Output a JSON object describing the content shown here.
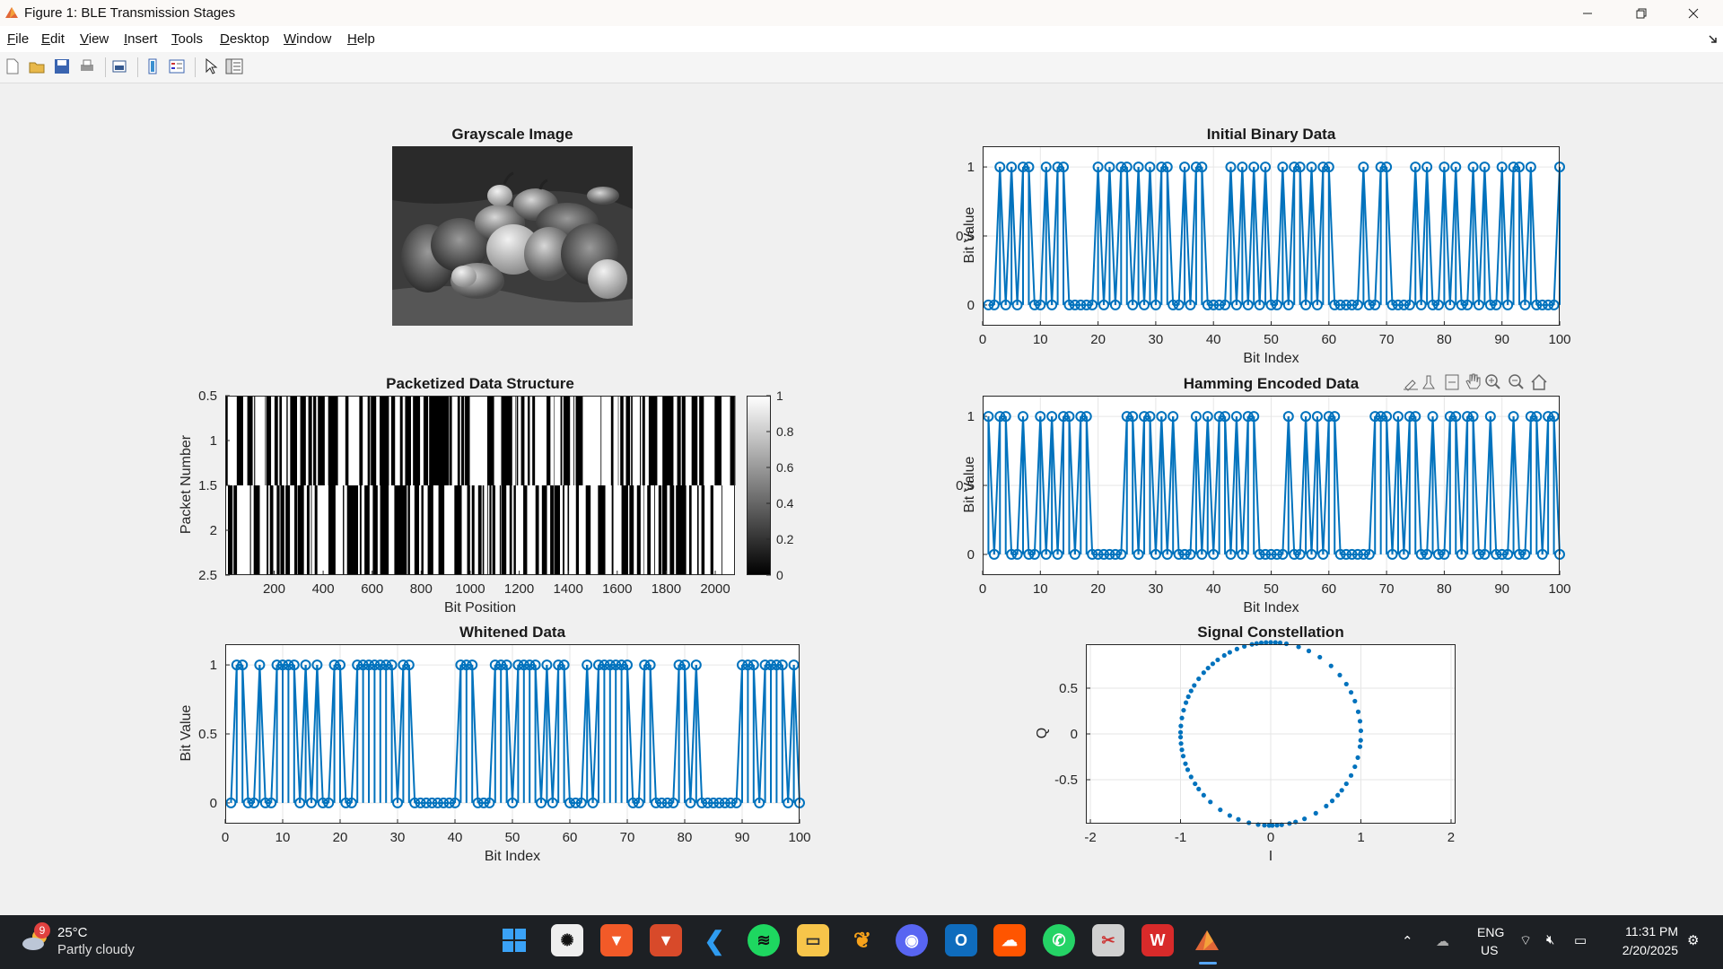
{
  "window": {
    "title": "Figure 1: BLE Transmission Stages"
  },
  "menu": {
    "items": [
      {
        "key": "F",
        "rest": "ile"
      },
      {
        "key": "E",
        "rest": "dit"
      },
      {
        "key": "V",
        "rest": "iew"
      },
      {
        "key": "I",
        "rest": "nsert"
      },
      {
        "key": "T",
        "rest": "ools"
      },
      {
        "key": "D",
        "rest": "esktop"
      },
      {
        "key": "W",
        "rest": "indow"
      },
      {
        "key": "H",
        "rest": "elp"
      }
    ]
  },
  "toolbar": {
    "icons": [
      "new-figure-icon",
      "open-file-icon",
      "save-icon",
      "print-icon",
      "print-preview-icon",
      "colorbar-icon",
      "legend-icon",
      "edit-plot-icon",
      "property-inspector-icon"
    ]
  },
  "axes_toolbar": {
    "icons": [
      "brush-icon",
      "data-tips-icon",
      "rotate-icon",
      "pan-icon",
      "zoom-in-icon",
      "zoom-out-icon",
      "home-icon"
    ]
  },
  "chart_data": [
    {
      "type": "image",
      "title": "Grayscale Image"
    },
    {
      "type": "stem",
      "title": "Initial Binary Data",
      "xlabel": "Bit Index",
      "ylabel": "Bit Value",
      "xlim": [
        0,
        100
      ],
      "ylim": [
        -0.15,
        1.15
      ],
      "xticks": [
        "0",
        "10",
        "20",
        "30",
        "40",
        "50",
        "60",
        "70",
        "80",
        "90",
        "100"
      ],
      "yticks": [
        "0",
        "0.5",
        "1"
      ],
      "grid": true,
      "x": [
        1,
        2,
        3,
        4,
        5,
        6,
        7,
        8,
        9,
        10,
        11,
        12,
        13,
        14,
        15,
        16,
        17,
        18,
        19,
        20,
        21,
        22,
        23,
        24,
        25,
        26,
        27,
        28,
        29,
        30,
        31,
        32,
        33,
        34,
        35,
        36,
        37,
        38,
        39,
        40,
        41,
        42,
        43,
        44,
        45,
        46,
        47,
        48,
        49,
        50,
        51,
        52,
        53,
        54,
        55,
        56,
        57,
        58,
        59,
        60,
        61,
        62,
        63,
        64,
        65,
        66,
        67,
        68,
        69,
        70,
        71,
        72,
        73,
        74,
        75,
        76,
        77,
        78,
        79,
        80,
        81,
        82,
        83,
        84,
        85,
        86,
        87,
        88,
        89,
        90,
        91,
        92,
        93,
        94,
        95,
        96,
        97,
        98,
        99,
        100
      ],
      "y": [
        0,
        0,
        1,
        0,
        1,
        0,
        1,
        1,
        0,
        0,
        1,
        0,
        1,
        1,
        0,
        0,
        0,
        0,
        0,
        1,
        0,
        1,
        0,
        1,
        1,
        0,
        1,
        0,
        1,
        0,
        1,
        1,
        0,
        0,
        1,
        0,
        1,
        1,
        0,
        0,
        0,
        0,
        1,
        0,
        1,
        0,
        1,
        0,
        1,
        0,
        0,
        1,
        0,
        1,
        1,
        0,
        1,
        0,
        1,
        1,
        0,
        0,
        0,
        0,
        0,
        1,
        0,
        0,
        1,
        1,
        0,
        0,
        0,
        0,
        1,
        0,
        1,
        0,
        0,
        1,
        0,
        1,
        0,
        0,
        1,
        0,
        1,
        0,
        0,
        1,
        0,
        1,
        1,
        0,
        1,
        0,
        0,
        0,
        0,
        1
      ]
    },
    {
      "type": "heatmap",
      "title": "Packetized Data Structure",
      "xlabel": "Bit Position",
      "ylabel": "Packet Number",
      "xlim": [
        0.5,
        2080.5
      ],
      "ylim": [
        0.5,
        2.5
      ],
      "xticks": [
        "200",
        "400",
        "600",
        "800",
        "1000",
        "1200",
        "1400",
        "1600",
        "1800",
        "2000"
      ],
      "yticks": [
        "0.5",
        "1",
        "1.5",
        "2",
        "2.5"
      ],
      "colorbar_ticks": [
        "0",
        "0.2",
        "0.4",
        "0.6",
        "0.8",
        "1"
      ],
      "colormap": "gray",
      "rows": 2,
      "cols": 2080,
      "seed": 7
    },
    {
      "type": "stem",
      "title": "Hamming Encoded Data",
      "xlabel": "Bit Index",
      "ylabel": "Bit Value",
      "xlim": [
        0,
        100
      ],
      "ylim": [
        -0.15,
        1.15
      ],
      "xticks": [
        "0",
        "10",
        "20",
        "30",
        "40",
        "50",
        "60",
        "70",
        "80",
        "90",
        "100"
      ],
      "yticks": [
        "0",
        "0.5",
        "1"
      ],
      "grid": true,
      "x": [
        1,
        2,
        3,
        4,
        5,
        6,
        7,
        8,
        9,
        10,
        11,
        12,
        13,
        14,
        15,
        16,
        17,
        18,
        19,
        20,
        21,
        22,
        23,
        24,
        25,
        26,
        27,
        28,
        29,
        30,
        31,
        32,
        33,
        34,
        35,
        36,
        37,
        38,
        39,
        40,
        41,
        42,
        43,
        44,
        45,
        46,
        47,
        48,
        49,
        50,
        51,
        52,
        53,
        54,
        55,
        56,
        57,
        58,
        59,
        60,
        61,
        62,
        63,
        64,
        65,
        66,
        67,
        68,
        69,
        70,
        71,
        72,
        73,
        74,
        75,
        76,
        77,
        78,
        79,
        80,
        81,
        82,
        83,
        84,
        85,
        86,
        87,
        88,
        89,
        90,
        91,
        92,
        93,
        94,
        95,
        96,
        97,
        98,
        99,
        100
      ],
      "y": [
        1,
        0,
        1,
        1,
        0,
        0,
        1,
        0,
        0,
        1,
        0,
        1,
        0,
        1,
        1,
        0,
        1,
        1,
        0,
        0,
        0,
        0,
        0,
        0,
        1,
        1,
        0,
        1,
        1,
        0,
        1,
        0,
        1,
        0,
        0,
        0,
        1,
        0,
        1,
        0,
        1,
        1,
        0,
        1,
        0,
        1,
        1,
        0,
        0,
        0,
        0,
        0,
        1,
        0,
        0,
        1,
        0,
        1,
        0,
        1,
        1,
        0,
        0,
        0,
        0,
        0,
        0,
        1,
        1,
        1,
        0,
        1,
        0,
        1,
        1,
        0,
        0,
        1,
        0,
        0,
        1,
        1,
        0,
        1,
        1,
        0,
        0,
        1,
        0,
        0,
        0,
        1,
        0,
        0,
        1,
        1,
        0,
        1,
        1,
        0
      ]
    },
    {
      "type": "stem",
      "title": "Whitened Data",
      "xlabel": "Bit Index",
      "ylabel": "Bit Value",
      "xlim": [
        0,
        100
      ],
      "ylim": [
        -0.15,
        1.15
      ],
      "xticks": [
        "0",
        "10",
        "20",
        "30",
        "40",
        "50",
        "60",
        "70",
        "80",
        "90",
        "100"
      ],
      "yticks": [
        "0",
        "0.5",
        "1"
      ],
      "grid": true,
      "x": [
        1,
        2,
        3,
        4,
        5,
        6,
        7,
        8,
        9,
        10,
        11,
        12,
        13,
        14,
        15,
        16,
        17,
        18,
        19,
        20,
        21,
        22,
        23,
        24,
        25,
        26,
        27,
        28,
        29,
        30,
        31,
        32,
        33,
        34,
        35,
        36,
        37,
        38,
        39,
        40,
        41,
        42,
        43,
        44,
        45,
        46,
        47,
        48,
        49,
        50,
        51,
        52,
        53,
        54,
        55,
        56,
        57,
        58,
        59,
        60,
        61,
        62,
        63,
        64,
        65,
        66,
        67,
        68,
        69,
        70,
        71,
        72,
        73,
        74,
        75,
        76,
        77,
        78,
        79,
        80,
        81,
        82,
        83,
        84,
        85,
        86,
        87,
        88,
        89,
        90,
        91,
        92,
        93,
        94,
        95,
        96,
        97,
        98,
        99,
        100
      ],
      "y": [
        0,
        1,
        1,
        0,
        0,
        1,
        0,
        0,
        1,
        1,
        1,
        1,
        0,
        1,
        0,
        1,
        0,
        0,
        1,
        1,
        0,
        0,
        1,
        1,
        1,
        1,
        1,
        1,
        1,
        0,
        1,
        1,
        0,
        0,
        0,
        0,
        0,
        0,
        0,
        0,
        1,
        1,
        1,
        0,
        0,
        0,
        1,
        1,
        1,
        0,
        1,
        1,
        1,
        1,
        0,
        1,
        0,
        1,
        1,
        0,
        0,
        0,
        1,
        0,
        1,
        1,
        1,
        1,
        1,
        1,
        0,
        0,
        1,
        1,
        0,
        0,
        0,
        0,
        1,
        1,
        0,
        1,
        0,
        0,
        0,
        0,
        0,
        0,
        0,
        1,
        1,
        1,
        0,
        1,
        1,
        1,
        1,
        0,
        1,
        0
      ]
    },
    {
      "type": "scatter",
      "title": "Signal Constellation",
      "xlabel": "I",
      "ylabel": "Q",
      "xlim": [
        -2.05,
        2.05
      ],
      "ylim": [
        -0.98,
        0.98
      ],
      "xticks": [
        "-2",
        "-1",
        "0",
        "1",
        "2"
      ],
      "yticks": [
        "-0.5",
        "0",
        "0.5"
      ],
      "grid": true,
      "points_on_unit_circle_angles_deg": [
        2,
        8,
        14,
        21,
        27,
        33,
        40,
        48,
        57,
        65,
        72,
        80,
        84,
        87,
        90,
        93,
        96,
        99,
        102,
        107,
        112,
        117,
        121,
        126,
        130,
        134,
        138,
        143,
        148,
        152,
        156,
        160,
        165,
        170,
        175,
        179,
        182,
        186,
        190,
        194,
        199,
        203,
        208,
        213,
        217,
        222,
        228,
        236,
        243,
        249,
        256,
        262,
        266,
        269,
        271,
        274,
        277,
        282,
        286,
        292,
        300,
        308,
        313,
        318,
        322,
        327,
        333,
        339,
        345,
        352,
        356
      ]
    }
  ],
  "taskbar": {
    "weather": {
      "temp": "25°C",
      "desc": "Partly cloudy",
      "badge": "9"
    },
    "apps": [
      "start-icon",
      "chatgpt-icon",
      "brave-icon",
      "brave-beta-icon",
      "vscode-icon",
      "spotify-icon",
      "file-explorer-icon",
      "fl-studio-icon",
      "discord-icon",
      "outlook-icon",
      "soundcloud-icon",
      "whatsapp-icon",
      "snipping-tool-icon",
      "wps-office-icon",
      "matlab-icon"
    ],
    "lang": {
      "line1": "ENG",
      "line2": "US"
    },
    "clock": {
      "time": "11:31 PM",
      "date": "2/20/2025"
    }
  },
  "colors": {
    "stem": "#0072bd",
    "taskbar": "#1d2024",
    "background": "#f0f0f0"
  }
}
